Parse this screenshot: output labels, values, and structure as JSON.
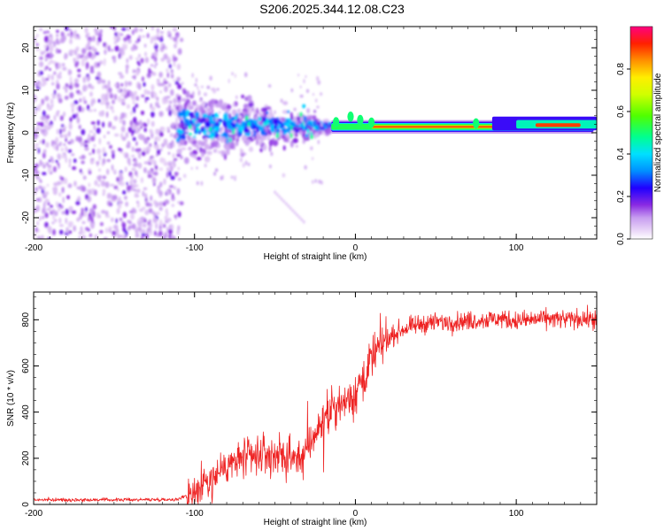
{
  "figure_title": "S206.2025.344.12.08.C23",
  "chart_data": [
    {
      "type": "heatmap",
      "name": "spectrogram",
      "xlabel": "Height of straight line (km)",
      "ylabel": "Frequency (Hz)",
      "xlim": [
        -200,
        150
      ],
      "ylim": [
        -25,
        25
      ],
      "xticks": [
        -200,
        -100,
        0,
        100
      ],
      "xtick_labels": [
        "-200",
        "-100",
        "0",
        "100"
      ],
      "yticks": [
        -20,
        -10,
        0,
        10,
        20
      ],
      "ytick_labels": [
        "-20",
        "-10",
        "0",
        "10",
        "20"
      ],
      "colorbar": {
        "label": "Normalized spectral amplitude",
        "range": [
          0,
          1
        ],
        "ticks": [
          0,
          0.2,
          0.4,
          0.6,
          0.8
        ],
        "tick_labels": [
          "0.0",
          "0.2",
          "0.4",
          "0.6",
          "0.8"
        ],
        "colormap": [
          "#ffffff",
          "#d8b8f5",
          "#8a2be2",
          "#0000ff",
          "#00c8ff",
          "#00ff80",
          "#a0ff00",
          "#ffff00",
          "#ff9000",
          "#ff0000",
          "#ff0080"
        ]
      },
      "regions": [
        {
          "description": "noise",
          "x": [
            -200,
            -110
          ],
          "y": [
            -25,
            25
          ],
          "amplitude": [
            0.05,
            0.2
          ]
        },
        {
          "description": "narrowing",
          "x": [
            -110,
            -20
          ],
          "y": [
            -8,
            10
          ],
          "amplitude": [
            0.1,
            0.35
          ]
        },
        {
          "description": "carrier",
          "x": [
            -20,
            150
          ],
          "y": [
            0,
            2
          ],
          "amplitude": [
            0.5,
            1.0
          ]
        }
      ]
    },
    {
      "type": "line",
      "name": "snr",
      "xlabel": "Height of straight line (km)",
      "ylabel": "SNR (10 * v/v)",
      "xlim": [
        -200,
        150
      ],
      "ylim": [
        0,
        920
      ],
      "xticks": [
        -200,
        -100,
        0,
        100
      ],
      "xtick_labels": [
        "-200",
        "-100",
        "0",
        "100"
      ],
      "yticks": [
        0,
        200,
        400,
        600,
        800
      ],
      "ytick_labels": [
        "0",
        "200",
        "400",
        "600",
        "800"
      ],
      "color": "#ee2222",
      "series": [
        {
          "name": "SNR",
          "x": [
            -200,
            -150,
            -110,
            -100,
            -90,
            -80,
            -70,
            -60,
            -50,
            -40,
            -30,
            -25,
            -20,
            -15,
            -10,
            -5,
            0,
            5,
            10,
            15,
            20,
            25,
            30,
            40,
            50,
            60,
            70,
            80,
            90,
            100,
            110,
            120,
            130,
            140,
            150
          ],
          "y": [
            20,
            20,
            22,
            60,
            120,
            170,
            200,
            210,
            215,
            200,
            230,
            300,
            360,
            400,
            420,
            450,
            480,
            560,
            620,
            680,
            720,
            740,
            760,
            780,
            790,
            790,
            795,
            800,
            805,
            795,
            800,
            805,
            800,
            805,
            800
          ]
        }
      ]
    }
  ]
}
